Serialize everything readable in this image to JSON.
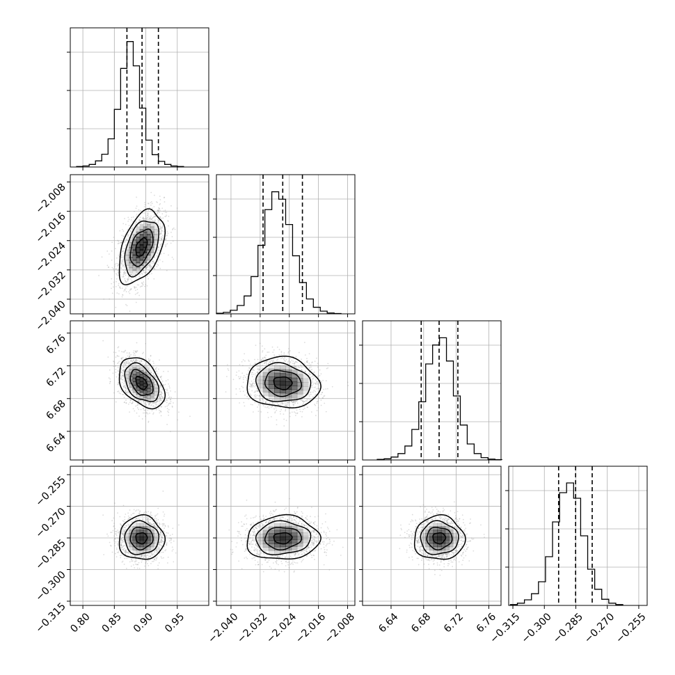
{
  "chart_data": {
    "type": "corner",
    "parameters": [
      {
        "xlim": [
          0.78,
          1.0
        ],
        "x_ticks": [
          "0.80",
          "0.85",
          "0.90",
          "0.95"
        ],
        "x_tick_values": [
          0.8,
          0.85,
          0.9,
          0.95
        ],
        "quantiles": [
          0.87,
          0.894,
          0.92
        ],
        "hist_bin_start": 0.79,
        "hist_bin_width": 0.01,
        "hist_counts": [
          2,
          4,
          10,
          24,
          50,
          110,
          225,
          385,
          490,
          395,
          230,
          105,
          48,
          22,
          10,
          4,
          2
        ],
        "hist_peak": 500
      },
      {
        "xlim": [
          -2.044,
          -2.006
        ],
        "x_ticks": [
          "−2.040",
          "−2.032",
          "−2.024",
          "−2.016",
          "−2.008"
        ],
        "x_tick_values": [
          -2.04,
          -2.032,
          -2.024,
          -2.016,
          -2.008
        ],
        "y_ticks": [
          "−2.008",
          "−2.016",
          "−2.024",
          "−2.032",
          "−2.040"
        ],
        "y_tick_values": [
          -2.008,
          -2.016,
          -2.024,
          -2.032,
          -2.04
        ],
        "quantiles": [
          -2.0312,
          -2.0258,
          -2.0204
        ],
        "hist_bin_start": -2.044,
        "hist_bin_width": 0.0019,
        "hist_counts": [
          2,
          5,
          12,
          28,
          60,
          125,
          230,
          350,
          410,
          385,
          300,
          195,
          105,
          50,
          22,
          9,
          3,
          1
        ],
        "hist_peak": 430
      },
      {
        "xlim": [
          6.605,
          6.775
        ],
        "x_ticks": [
          "6.64",
          "6.68",
          "6.72",
          "6.76"
        ],
        "x_tick_values": [
          6.64,
          6.68,
          6.72,
          6.76
        ],
        "y_ticks": [
          "6.76",
          "6.72",
          "6.68",
          "6.64"
        ],
        "y_tick_values": [
          6.76,
          6.72,
          6.68,
          6.64
        ],
        "quantiles": [
          6.677,
          6.699,
          6.722
        ],
        "hist_bin_start": 6.623,
        "hist_bin_width": 0.0085,
        "hist_counts": [
          2,
          4,
          10,
          22,
          48,
          105,
          200,
          330,
          395,
          420,
          340,
          220,
          120,
          55,
          22,
          8,
          3,
          1
        ],
        "hist_peak": 440
      },
      {
        "xlim": [
          -0.317,
          -0.251
        ],
        "x_ticks": [
          "−0.315",
          "−0.300",
          "−0.285",
          "−0.270",
          "−0.255"
        ],
        "x_tick_values": [
          -0.315,
          -0.3,
          -0.285,
          -0.27,
          -0.255
        ],
        "y_ticks": [
          "−0.255",
          "−0.270",
          "−0.285",
          "−0.300",
          "−0.315"
        ],
        "y_tick_values": [
          -0.255,
          -0.27,
          -0.285,
          -0.3,
          -0.315
        ],
        "quantiles": [
          -0.2932,
          -0.2851,
          -0.2772
        ],
        "hist_bin_start": -0.3162,
        "hist_bin_width": 0.00335,
        "hist_counts": [
          3,
          8,
          20,
          42,
          85,
          175,
          300,
          405,
          440,
          385,
          250,
          130,
          58,
          22,
          8,
          3
        ],
        "hist_peak": 460
      }
    ],
    "pairs": [
      {
        "row": 1,
        "col": 0,
        "center": [
          0.893,
          -2.0258
        ],
        "std": [
          0.018,
          0.005
        ],
        "rho": 0.45
      },
      {
        "row": 2,
        "col": 0,
        "center": [
          0.893,
          6.699
        ],
        "std": [
          0.018,
          0.0155
        ],
        "rho": -0.42
      },
      {
        "row": 2,
        "col": 1,
        "center": [
          -2.0258,
          6.699
        ],
        "std": [
          0.005,
          0.0155
        ],
        "rho": -0.08
      },
      {
        "row": 3,
        "col": 0,
        "center": [
          0.893,
          -0.2851
        ],
        "std": [
          0.018,
          0.0052
        ],
        "rho": 0.0
      },
      {
        "row": 3,
        "col": 1,
        "center": [
          -2.0258,
          -0.2851
        ],
        "std": [
          0.005,
          0.0052
        ],
        "rho": 0.05
      },
      {
        "row": 3,
        "col": 2,
        "center": [
          6.699,
          -0.2851
        ],
        "std": [
          0.0155,
          0.0052
        ],
        "rho": 0.0
      }
    ],
    "contour_levels_sigma": [
      0.5,
      1.0,
      1.5,
      2.0
    ],
    "grid": true,
    "line_color": "#000000",
    "scatter_color": "#9a9a9a",
    "hist_shade_color": "#000000"
  }
}
